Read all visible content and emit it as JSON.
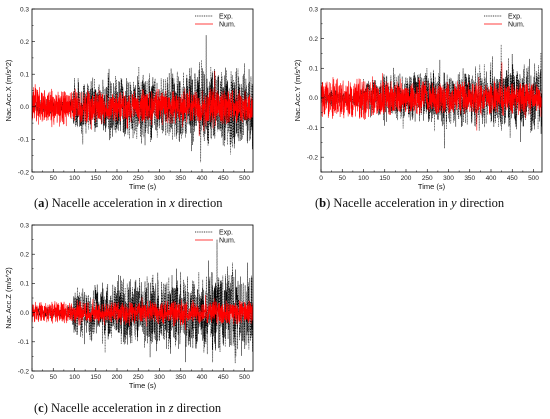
{
  "chart_data": [
    {
      "type": "line",
      "panel": "a",
      "caption": {
        "letter": "a",
        "text": "Nacelle acceleration in",
        "axis": "x",
        "suffix": "direction"
      },
      "xlabel": "Time (s)",
      "ylabel": "Nac.Acc.X (m/s^2)",
      "xlim": [
        0,
        520
      ],
      "ylim": [
        -0.2,
        0.3
      ],
      "xticks": [
        "0",
        "50",
        "100",
        "150",
        "200",
        "250",
        "300",
        "350",
        "400",
        "450",
        "500"
      ],
      "yticks": [
        "-0.2",
        "-0.1",
        "0.0",
        "0.1",
        "0.2",
        "0.3"
      ],
      "legend": {
        "placement": "top-right",
        "entries": [
          "Exp.",
          "Num."
        ]
      },
      "series": [
        {
          "name": "Exp.",
          "color": "#000000",
          "dash": "dotted",
          "envelope": {
            "t": [
              0,
              90,
              100,
              200,
              300,
              400,
              500,
              520
            ],
            "amp": [
              0.02,
              0.025,
              0.09,
              0.11,
              0.12,
              0.13,
              0.14,
              0.14
            ]
          },
          "peaks": {
            "max": 0.22,
            "min": -0.17
          }
        },
        {
          "name": "Num.",
          "color": "#ff0000",
          "dash": "solid",
          "envelope": {
            "t": [
              0,
              100,
              200,
              300,
              400,
              520
            ],
            "amp": [
              0.07,
              0.06,
              0.055,
              0.06,
              0.06,
              0.06
            ]
          },
          "peaks": {
            "max": 0.11,
            "min": -0.09
          }
        }
      ]
    },
    {
      "type": "line",
      "panel": "b",
      "caption": {
        "letter": "b",
        "text": "Nacelle acceleration in",
        "axis": "y",
        "suffix": "direction"
      },
      "xlabel": "Time (s)",
      "ylabel": "Nac.Acc.Y (m/s^2)",
      "xlim": [
        0,
        520
      ],
      "ylim": [
        -0.25,
        0.3
      ],
      "xticks": [
        "0",
        "50",
        "100",
        "150",
        "200",
        "250",
        "300",
        "350",
        "400",
        "450",
        "500"
      ],
      "yticks": [
        "-0.2",
        "-0.1",
        "0.0",
        "0.1",
        "0.2",
        "0.3"
      ],
      "legend": {
        "placement": "top-right",
        "entries": [
          "Exp.",
          "Num."
        ]
      },
      "series": [
        {
          "name": "Exp.",
          "color": "#000000",
          "dash": "dotted",
          "envelope": {
            "t": [
              0,
              90,
              100,
              200,
              300,
              400,
              500,
              520
            ],
            "amp": [
              0.025,
              0.03,
              0.07,
              0.09,
              0.11,
              0.12,
              0.13,
              0.13
            ]
          },
          "peaks": {
            "max": 0.18,
            "min": -0.17
          }
        },
        {
          "name": "Num.",
          "color": "#ff0000",
          "dash": "solid",
          "envelope": {
            "t": [
              0,
              100,
              200,
              300,
              400,
              520
            ],
            "amp": [
              0.08,
              0.07,
              0.06,
              0.06,
              0.06,
              0.06
            ]
          },
          "peaks": {
            "max": 0.12,
            "min": -0.11
          }
        }
      ]
    },
    {
      "type": "line",
      "panel": "c",
      "caption": {
        "letter": "c",
        "text": "Nacelle acceleration in",
        "axis": "z",
        "suffix": "direction"
      },
      "xlabel": "Time (s)",
      "ylabel": "Nac.Acc.Z (m/s^2)",
      "xlim": [
        0,
        520
      ],
      "ylim": [
        -0.2,
        0.3
      ],
      "xticks": [
        "0",
        "50",
        "100",
        "150",
        "200",
        "250",
        "300",
        "350",
        "400",
        "450",
        "500"
      ],
      "yticks": [
        "-0.2",
        "-0.1",
        "0.0",
        "0.1",
        "0.2",
        "0.3"
      ],
      "legend": {
        "placement": "top-right",
        "entries": [
          "Exp.",
          "Num."
        ]
      },
      "series": [
        {
          "name": "Exp.",
          "color": "#000000",
          "dash": "dotted",
          "envelope": {
            "t": [
              0,
              90,
              100,
              200,
              300,
              400,
              500,
              520
            ],
            "amp": [
              0.02,
              0.025,
              0.09,
              0.12,
              0.14,
              0.15,
              0.16,
              0.16
            ]
          },
          "peaks": {
            "max": 0.25,
            "min": -0.17
          }
        },
        {
          "name": "Num.",
          "color": "#ff0000",
          "dash": "solid",
          "envelope": {
            "t": [
              0,
              100,
              200,
              300,
              400,
              520
            ],
            "amp": [
              0.04,
              0.04,
              0.04,
              0.045,
              0.045,
              0.045
            ]
          },
          "peaks": {
            "max": 0.06,
            "min": -0.06
          }
        }
      ]
    }
  ]
}
